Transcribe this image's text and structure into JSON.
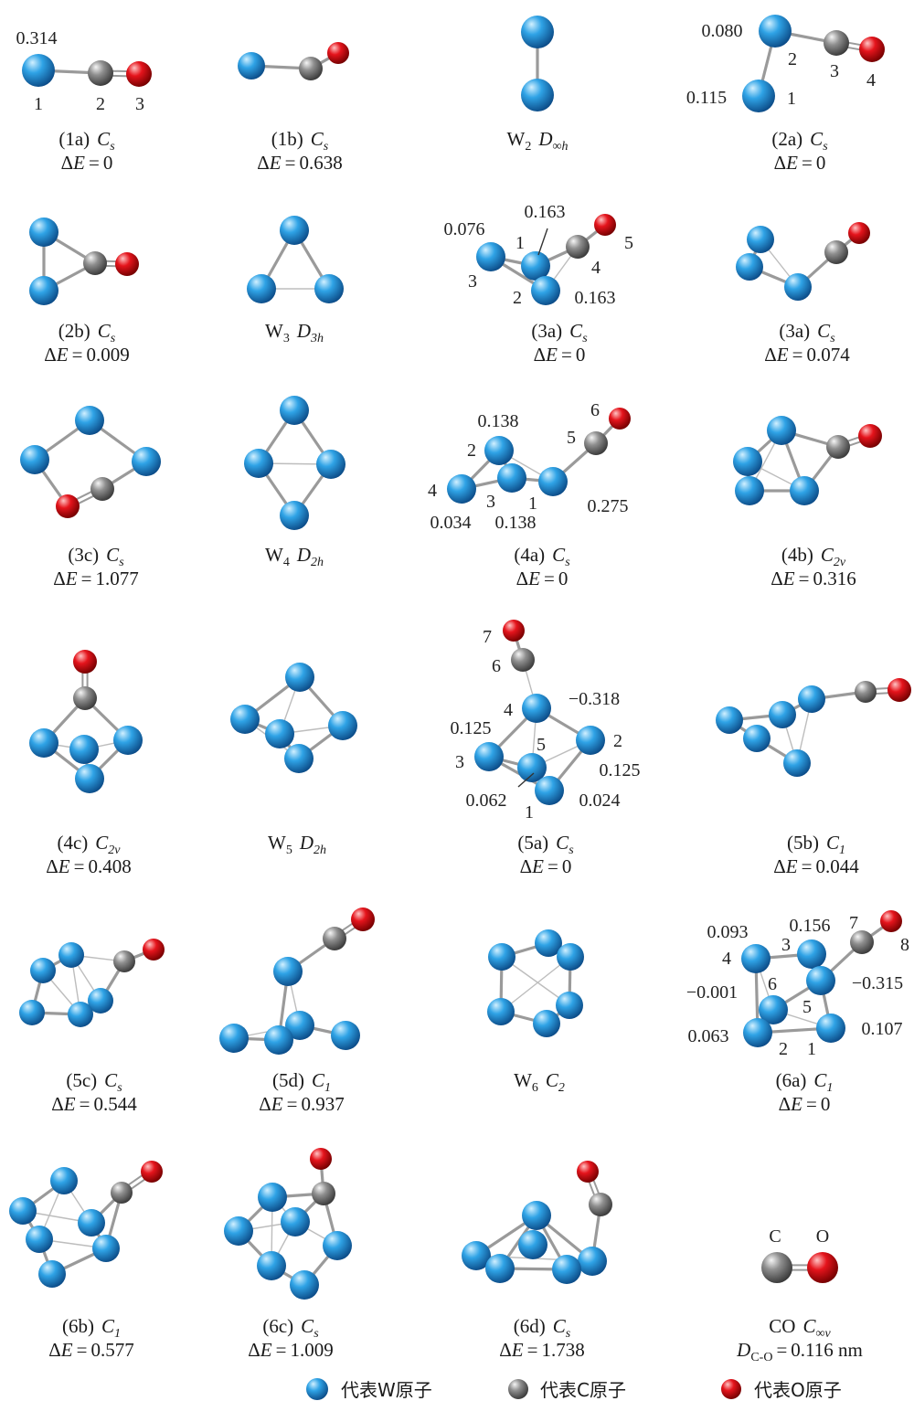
{
  "atom_colors": {
    "W": "#2fa3e6",
    "C": "#8f8f8f",
    "O": "#e5141c"
  },
  "common": {
    "delta": "Δ",
    "energy_var": "E",
    "equals": "="
  },
  "structures": [
    {
      "name": "(1a)",
      "sym": "C",
      "sym_sub": "s",
      "delta_e": "0",
      "labels": [
        "0.314",
        "1",
        "2",
        "3"
      ]
    },
    {
      "name": "(1b)",
      "sym": "C",
      "sym_sub": "s",
      "delta_e": "0.638"
    },
    {
      "name": "W",
      "name_sub": "2",
      "sym": "D",
      "sym_sub": "∞h"
    },
    {
      "name": "(2a)",
      "sym": "C",
      "sym_sub": "s",
      "delta_e": "0",
      "labels": [
        "0.080",
        "0.115",
        "2",
        "3",
        "4",
        "1"
      ]
    },
    {
      "name": "(2b)",
      "sym": "C",
      "sym_sub": "s",
      "delta_e": "0.009"
    },
    {
      "name": "W",
      "name_sub": "3",
      "sym": "D",
      "sym_sub": "3h"
    },
    {
      "name": "(3a)",
      "sym": "C",
      "sym_sub": "s",
      "delta_e": "0",
      "labels": [
        "0.076",
        "0.163",
        "1",
        "5",
        "4",
        "3",
        "2",
        "0.163"
      ]
    },
    {
      "name": "(3a)",
      "sym": "C",
      "sym_sub": "s",
      "delta_e": "0.074"
    },
    {
      "name": "(3c)",
      "sym": "C",
      "sym_sub": "s",
      "delta_e": "1.077"
    },
    {
      "name": "W",
      "name_sub": "4",
      "sym": "D",
      "sym_sub": "2h"
    },
    {
      "name": "(4a)",
      "sym": "C",
      "sym_sub": "s",
      "delta_e": "0",
      "labels": [
        "0.138",
        "6",
        "5",
        "2",
        "4",
        "3",
        "1",
        "0.275",
        "0.034",
        "0.138"
      ]
    },
    {
      "name": "(4b)",
      "sym": "C",
      "sym_sub": "2v",
      "delta_e": "0.316"
    },
    {
      "name": "(4c)",
      "sym": "C",
      "sym_sub": "2v",
      "delta_e": "0.408"
    },
    {
      "name": "W",
      "name_sub": "5",
      "sym": "D",
      "sym_sub": "2h"
    },
    {
      "name": "(5a)",
      "sym": "C",
      "sym_sub": "s",
      "delta_e": "0",
      "labels": [
        "7",
        "6",
        "−0.318",
        "4",
        "0.125",
        "5",
        "2",
        "3",
        "0.125",
        "0.062",
        "0.024",
        "1"
      ]
    },
    {
      "name": "(5b)",
      "sym": "C",
      "sym_sub": "1",
      "delta_e": "0.044"
    },
    {
      "name": "(5c)",
      "sym": "C",
      "sym_sub": "s",
      "delta_e": "0.544"
    },
    {
      "name": "(5d)",
      "sym": "C",
      "sym_sub": "1",
      "delta_e": "0.937"
    },
    {
      "name": "W",
      "name_sub": "6",
      "sym": "C",
      "sym_sub": "2"
    },
    {
      "name": "(6a)",
      "sym": "C",
      "sym_sub": "1",
      "delta_e": "0",
      "labels": [
        "0.093",
        "0.156",
        "7",
        "8",
        "3",
        "4",
        "6",
        "−0.315",
        "−0.001",
        "5",
        "0.063",
        "0.107",
        "2",
        "1"
      ]
    },
    {
      "name": "(6b)",
      "sym": "C",
      "sym_sub": "1",
      "delta_e": "0.577"
    },
    {
      "name": "(6c)",
      "sym": "C",
      "sym_sub": "s",
      "delta_e": "1.009"
    },
    {
      "name": "(6d)",
      "sym": "C",
      "sym_sub": "s",
      "delta_e": "1.738"
    },
    {
      "name": "CO",
      "sym": "C",
      "sym_sub": "∞v",
      "labels": [
        "C",
        "O"
      ],
      "bond_length": {
        "var": "D",
        "sub": "C-O",
        "value": "0.116 nm"
      }
    }
  ],
  "legend": {
    "w_label": "代表W原子",
    "c_label": "代表C原子",
    "o_label": "代表O原子"
  }
}
